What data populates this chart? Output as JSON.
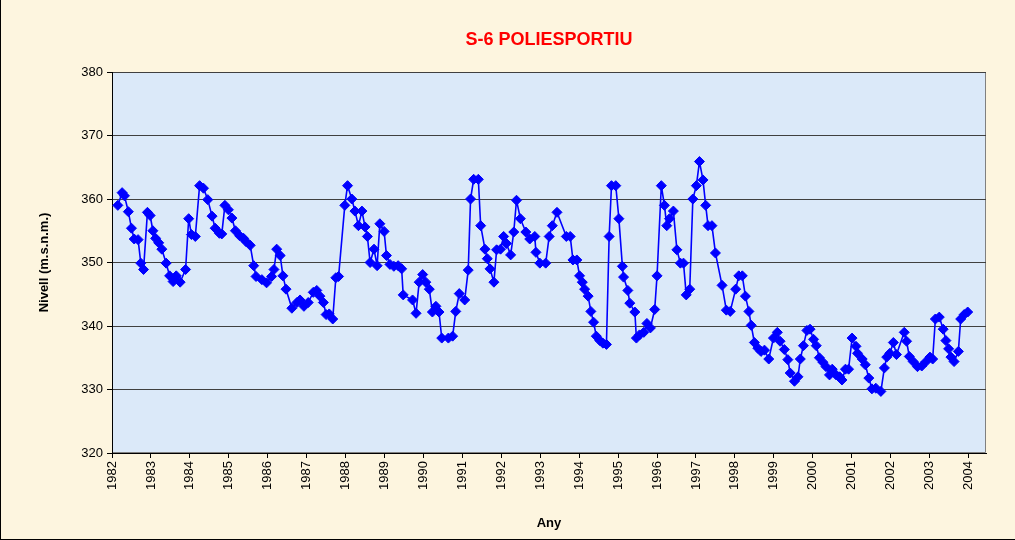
{
  "chart_data": {
    "type": "line",
    "title": "S-6 POLIESPORTIU",
    "xlabel": "Any",
    "ylabel": "Nivell (m.s.n.m.)",
    "x": [
      1982.15,
      1982.26,
      1982.32,
      1982.42,
      1982.5,
      1982.57,
      1982.67,
      1982.74,
      1982.81,
      1982.91,
      1982.98,
      1983.05,
      1983.12,
      1983.2,
      1983.28,
      1983.39,
      1983.48,
      1983.57,
      1983.65,
      1983.75,
      1983.89,
      1983.97,
      1984.04,
      1984.14,
      1984.25,
      1984.35,
      1984.46,
      1984.57,
      1984.65,
      1984.76,
      1984.82,
      1984.9,
      1984.99,
      1985.08,
      1985.17,
      1985.28,
      1985.38,
      1985.44,
      1985.55,
      1985.64,
      1985.7,
      1985.85,
      1985.97,
      1986.1,
      1986.16,
      1986.23,
      1986.32,
      1986.39,
      1986.47,
      1986.62,
      1986.75,
      1986.83,
      1986.93,
      1987.04,
      1987.17,
      1987.26,
      1987.34,
      1987.43,
      1987.5,
      1987.58,
      1987.67,
      1987.75,
      1987.82,
      1987.98,
      1988.05,
      1988.16,
      1988.24,
      1988.33,
      1988.42,
      1988.5,
      1988.56,
      1988.63,
      1988.73,
      1988.81,
      1988.88,
      1988.99,
      1989.05,
      1989.14,
      1989.24,
      1989.35,
      1989.44,
      1989.48,
      1989.72,
      1989.81,
      1989.89,
      1989.98,
      1990.06,
      1990.15,
      1990.23,
      1990.32,
      1990.4,
      1990.47,
      1990.64,
      1990.75,
      1990.83,
      1990.92,
      1991.06,
      1991.15,
      1991.21,
      1991.29,
      1991.41,
      1991.47,
      1991.58,
      1991.64,
      1991.71,
      1991.81,
      1991.88,
      1991.98,
      1992.06,
      1992.13,
      1992.24,
      1992.32,
      1992.39,
      1992.49,
      1992.63,
      1992.73,
      1992.86,
      1992.89,
      1992.99,
      1993.14,
      1993.23,
      1993.31,
      1993.43,
      1993.67,
      1993.77,
      1993.84,
      1993.94,
      1994.01,
      1994.08,
      1994.14,
      1994.23,
      1994.3,
      1994.37,
      1994.44,
      1994.53,
      1994.61,
      1994.7,
      1994.77,
      1994.83,
      1994.94,
      1995.02,
      1995.11,
      1995.14,
      1995.25,
      1995.3,
      1995.43,
      1995.47,
      1995.55,
      1995.66,
      1995.74,
      1995.83,
      1995.94,
      1996.0,
      1996.11,
      1996.19,
      1996.25,
      1996.32,
      1996.42,
      1996.51,
      1996.6,
      1996.68,
      1996.75,
      1996.84,
      1996.92,
      1997.01,
      1997.09,
      1997.18,
      1997.25,
      1997.31,
      1997.41,
      1997.5,
      1997.67,
      1997.78,
      1997.88,
      1998.02,
      1998.1,
      1998.19,
      1998.27,
      1998.36,
      1998.42,
      1998.5,
      1998.59,
      1998.67,
      1998.76,
      1998.87,
      1998.99,
      1999.09,
      1999.16,
      1999.27,
      1999.36,
      1999.42,
      1999.53,
      1999.62,
      1999.68,
      1999.76,
      1999.85,
      1999.93,
      2000.02,
      2000.09,
      2000.17,
      2000.26,
      2000.34,
      2000.43,
      2000.5,
      2000.6,
      2000.69,
      2000.75,
      2000.84,
      2000.92,
      2001.01,
      2001.11,
      2001.15,
      2001.27,
      2001.35,
      2001.44,
      2001.52,
      2001.62,
      2001.75,
      2001.84,
      2001.9,
      2001.98,
      2002.07,
      2002.15,
      2002.35,
      2002.41,
      2002.48,
      2002.58,
      2002.69,
      2002.8,
      2002.91,
      2003.01,
      2003.08,
      2003.15,
      2003.25,
      2003.35,
      2003.42,
      2003.49,
      2003.55,
      2003.63,
      2003.74,
      2003.8,
      2003.89,
      2003.98
    ],
    "values": [
      359.0,
      361.0,
      360.5,
      358.0,
      355.4,
      353.7,
      353.6,
      349.9,
      348.9,
      357.9,
      357.4,
      355.0,
      353.8,
      353.1,
      352.1,
      349.9,
      347.9,
      347.0,
      347.9,
      346.9,
      348.9,
      356.9,
      354.4,
      354.1,
      362.1,
      361.7,
      359.9,
      357.3,
      355.4,
      354.6,
      354.5,
      359.0,
      358.3,
      357.0,
      355.0,
      354.2,
      353.8,
      353.3,
      352.7,
      349.5,
      347.8,
      347.3,
      346.8,
      347.8,
      348.9,
      352.1,
      351.1,
      347.9,
      345.8,
      342.8,
      343.7,
      344.1,
      343.1,
      343.7,
      345.3,
      345.6,
      344.7,
      343.7,
      341.8,
      341.9,
      341.1,
      347.6,
      347.8,
      359.0,
      362.1,
      360.0,
      358.1,
      355.8,
      358.1,
      355.6,
      354.1,
      350.0,
      352.1,
      349.5,
      356.1,
      354.9,
      351.1,
      349.7,
      349.4,
      349.5,
      349.0,
      344.9,
      344.1,
      342.0,
      346.9,
      348.1,
      346.9,
      345.8,
      342.2,
      343.1,
      342.2,
      338.1,
      338.1,
      338.4,
      342.3,
      345.1,
      344.1,
      348.8,
      360.0,
      363.1,
      363.1,
      355.8,
      352.1,
      350.6,
      349.0,
      346.9,
      352.0,
      352.1,
      354.1,
      353.0,
      351.2,
      354.8,
      359.8,
      356.9,
      354.8,
      353.7,
      354.1,
      351.6,
      349.9,
      349.9,
      354.1,
      355.8,
      357.9,
      354.1,
      354.1,
      350.4,
      350.4,
      347.9,
      346.9,
      345.8,
      344.7,
      342.3,
      340.6,
      338.4,
      337.7,
      337.3,
      337.1,
      354.1,
      362.1,
      362.1,
      356.9,
      349.4,
      347.7,
      345.6,
      343.6,
      342.2,
      338.1,
      338.6,
      339.0,
      340.4,
      339.7,
      342.6,
      347.9,
      362.1,
      359.0,
      355.8,
      356.9,
      358.1,
      352.0,
      349.9,
      349.9,
      344.9,
      345.8,
      360.0,
      362.1,
      365.9,
      363.0,
      359.0,
      355.8,
      355.8,
      351.5,
      346.4,
      342.5,
      342.3,
      345.8,
      347.9,
      347.9,
      344.7,
      342.3,
      340.1,
      337.4,
      336.5,
      336.0,
      336.2,
      334.8,
      338.1,
      339.0,
      337.6,
      336.3,
      334.7,
      332.6,
      331.3,
      332.0,
      334.8,
      336.9,
      339.3,
      339.5,
      337.9,
      336.9,
      335.0,
      334.3,
      333.6,
      332.3,
      333.2,
      332.3,
      332.0,
      331.5,
      333.2,
      333.2,
      338.1,
      336.8,
      335.7,
      334.8,
      333.9,
      331.8,
      330.1,
      330.2,
      329.7,
      333.4,
      335.1,
      335.7,
      337.4,
      335.5,
      339.0,
      337.6,
      335.2,
      334.4,
      333.6,
      333.7,
      334.4,
      335.1,
      334.8,
      341.1,
      341.4,
      339.5,
      337.7,
      336.4,
      335.1,
      334.4,
      336.0,
      341.1,
      341.8,
      342.2
    ],
    "color": "#0000ff",
    "xlim": [
      1982,
      2004.45
    ],
    "xticks": [
      1982,
      1983,
      1984,
      1985,
      1986,
      1987,
      1988,
      1989,
      1990,
      1991,
      1992,
      1993,
      1994,
      1995,
      1996,
      1997,
      1998,
      1999,
      2000,
      2001,
      2002,
      2003,
      2004
    ],
    "ylim": [
      320,
      380
    ],
    "yticks": [
      320,
      330,
      340,
      350,
      360,
      370,
      380
    ],
    "grid": "y",
    "marker": "diamond",
    "line_style": "solid"
  }
}
